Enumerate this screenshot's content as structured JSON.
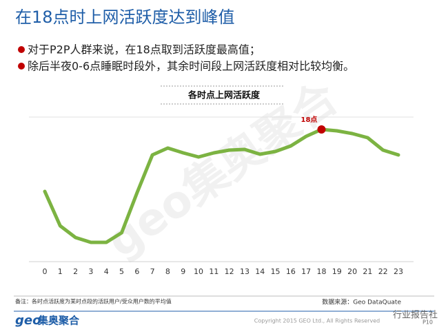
{
  "header": {
    "title": "在18点时上网活跃度达到峰值"
  },
  "bullets": [
    "对于P2P人群来说，在18点取到活跃度最高值；",
    "除后半夜0-6点睡眠时段外，其余时间段上网活跃度相对比较均衡。"
  ],
  "chart_data": {
    "type": "line",
    "title": "各时点上网活跃度",
    "categories": [
      "0",
      "1",
      "2",
      "3",
      "4",
      "5",
      "6",
      "7",
      "8",
      "9",
      "10",
      "11",
      "12",
      "13",
      "14",
      "15",
      "16",
      "17",
      "18",
      "19",
      "20",
      "21",
      "22",
      "23"
    ],
    "values": [
      51,
      26,
      17.5,
      14,
      14,
      21,
      50,
      77.5,
      82.5,
      79,
      76,
      79,
      81,
      81.5,
      78,
      80,
      84,
      91,
      96,
      95,
      93,
      90,
      81,
      77.5
    ],
    "color": "#7cb342",
    "annotations": [
      {
        "category": "18",
        "text": "18点",
        "color": "#c00000"
      }
    ]
  },
  "footer": {
    "note": "备注：各时点活跃度为某时点段的活跃用户/受众用户数的平均值",
    "source": "数据来源：Geo DataQuate",
    "logo_en": "geo",
    "logo_cn": "集奥聚合",
    "copyright": "Copyright 2015 GEO Ltd., All Rights Reserved",
    "page": "P10",
    "watermark": "行业报告社",
    "brand_watermark": "geo集奥聚合"
  }
}
